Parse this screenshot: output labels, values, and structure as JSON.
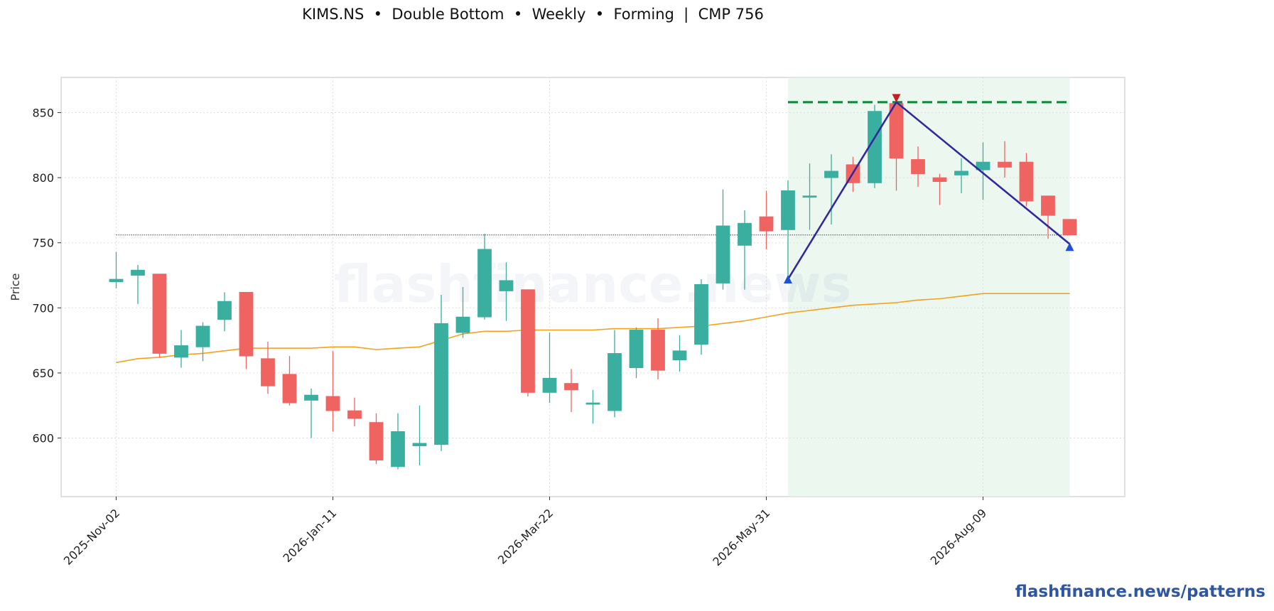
{
  "title": "KIMS.NS  •  Double Bottom  •  Weekly  •  Forming  |  CMP 756",
  "watermark": "flashfinance.news",
  "footer": "flashfinance.news/patterns",
  "colors": {
    "up": "#3aaf9f",
    "down": "#ef6461",
    "ma": "#f5a11c",
    "pattern": "#2e2a9e",
    "resistance": "#12883a",
    "zone": "#e4f3ea",
    "peak_marker": "#c81e1e",
    "bottom_marker": "#2050d8"
  },
  "chart_data": {
    "type": "candlestick",
    "ylabel": "Price",
    "ylim": [
      555,
      877
    ],
    "yticks": [
      600,
      650,
      700,
      750,
      800,
      850
    ],
    "xtick_labels": [
      "2025-Nov-02",
      "2026-Jan-11",
      "2026-Mar-22",
      "2026-May-31",
      "2026-Aug-09"
    ],
    "xtick_index": [
      0,
      10,
      20,
      30,
      40
    ],
    "grid": true,
    "candles": [
      {
        "date": "2025-Nov-02",
        "o": 720,
        "h": 743,
        "l": 715,
        "c": 722
      },
      {
        "date": "2025-Nov-09",
        "o": 725,
        "h": 733,
        "l": 703,
        "c": 729
      },
      {
        "date": "2025-Nov-16",
        "o": 726,
        "h": 726,
        "l": 662,
        "c": 665
      },
      {
        "date": "2025-Nov-23",
        "o": 662,
        "h": 683,
        "l": 654,
        "c": 671
      },
      {
        "date": "2025-Nov-30",
        "o": 670,
        "h": 689,
        "l": 659,
        "c": 686
      },
      {
        "date": "2025-Dec-07",
        "o": 691,
        "h": 712,
        "l": 682,
        "c": 705
      },
      {
        "date": "2025-Dec-14",
        "o": 712,
        "h": 712,
        "l": 653,
        "c": 663
      },
      {
        "date": "2025-Dec-21",
        "o": 661,
        "h": 674,
        "l": 634,
        "c": 640
      },
      {
        "date": "2025-Dec-28",
        "o": 649,
        "h": 663,
        "l": 625,
        "c": 627
      },
      {
        "date": "2026-Jan-04",
        "o": 629,
        "h": 638,
        "l": 600,
        "c": 633
      },
      {
        "date": "2026-Jan-11",
        "o": 632,
        "h": 667,
        "l": 605,
        "c": 621
      },
      {
        "date": "2026-Jan-18",
        "o": 621,
        "h": 631,
        "l": 609,
        "c": 615
      },
      {
        "date": "2026-Jan-25",
        "o": 612,
        "h": 619,
        "l": 580,
        "c": 583
      },
      {
        "date": "2026-Feb-01",
        "o": 578,
        "h": 619,
        "l": 576,
        "c": 605
      },
      {
        "date": "2026-Feb-08",
        "o": 594,
        "h": 625,
        "l": 579,
        "c": 596
      },
      {
        "date": "2026-Feb-15",
        "o": 595,
        "h": 710,
        "l": 590,
        "c": 688
      },
      {
        "date": "2026-Feb-22",
        "o": 681,
        "h": 716,
        "l": 677,
        "c": 693
      },
      {
        "date": "2026-Mar-01",
        "o": 693,
        "h": 757,
        "l": 691,
        "c": 745
      },
      {
        "date": "2026-Mar-08",
        "o": 713,
        "h": 735,
        "l": 690,
        "c": 721
      },
      {
        "date": "2026-Mar-15",
        "o": 714,
        "h": 714,
        "l": 632,
        "c": 635
      },
      {
        "date": "2026-Mar-22",
        "o": 635,
        "h": 681,
        "l": 627,
        "c": 646
      },
      {
        "date": "2026-Mar-29",
        "o": 642,
        "h": 653,
        "l": 620,
        "c": 637
      },
      {
        "date": "2026-Apr-05",
        "o": 626,
        "h": 637,
        "l": 611,
        "c": 627
      },
      {
        "date": "2026-Apr-12",
        "o": 621,
        "h": 683,
        "l": 616,
        "c": 665
      },
      {
        "date": "2026-Apr-19",
        "o": 654,
        "h": 685,
        "l": 646,
        "c": 683
      },
      {
        "date": "2026-Apr-26",
        "o": 683,
        "h": 692,
        "l": 645,
        "c": 652
      },
      {
        "date": "2026-May-03",
        "o": 660,
        "h": 679,
        "l": 651,
        "c": 667
      },
      {
        "date": "2026-May-10",
        "o": 672,
        "h": 722,
        "l": 664,
        "c": 718
      },
      {
        "date": "2026-May-17",
        "o": 719,
        "h": 791,
        "l": 714,
        "c": 763
      },
      {
        "date": "2026-May-24",
        "o": 748,
        "h": 775,
        "l": 714,
        "c": 765
      },
      {
        "date": "2026-May-31",
        "o": 770,
        "h": 790,
        "l": 745,
        "c": 759
      },
      {
        "date": "2026-Jun-07",
        "o": 760,
        "h": 798,
        "l": 722,
        "c": 790
      },
      {
        "date": "2026-Jun-14",
        "o": 785,
        "h": 811,
        "l": 760,
        "c": 786
      },
      {
        "date": "2026-Jun-21",
        "o": 800,
        "h": 818,
        "l": 764,
        "c": 805
      },
      {
        "date": "2026-Jun-28",
        "o": 810,
        "h": 816,
        "l": 789,
        "c": 796
      },
      {
        "date": "2026-Jul-05",
        "o": 796,
        "h": 856,
        "l": 792,
        "c": 851
      },
      {
        "date": "2026-Jul-12",
        "o": 857,
        "h": 862,
        "l": 790,
        "c": 815
      },
      {
        "date": "2026-Jul-19",
        "o": 814,
        "h": 824,
        "l": 793,
        "c": 803
      },
      {
        "date": "2026-Jul-26",
        "o": 800,
        "h": 803,
        "l": 779,
        "c": 797
      },
      {
        "date": "2026-Aug-02",
        "o": 802,
        "h": 815,
        "l": 788,
        "c": 805
      },
      {
        "date": "2026-Aug-09",
        "o": 806,
        "h": 827,
        "l": 783,
        "c": 812
      },
      {
        "date": "2026-Aug-16",
        "o": 812,
        "h": 828,
        "l": 800,
        "c": 808
      },
      {
        "date": "2026-Aug-23",
        "o": 812,
        "h": 819,
        "l": 778,
        "c": 782
      },
      {
        "date": "2026-Aug-30",
        "o": 786,
        "h": 786,
        "l": 753,
        "c": 771
      },
      {
        "date": "2026-Sep-06",
        "o": 768,
        "h": 768,
        "l": 756,
        "c": 756
      }
    ],
    "moving_average": [
      658,
      661,
      662,
      664,
      665,
      667,
      669,
      669,
      669,
      669,
      670,
      670,
      668,
      669,
      670,
      675,
      680,
      682,
      682,
      683,
      683,
      683,
      683,
      684,
      684,
      684,
      685,
      686,
      688,
      690,
      693,
      696,
      698,
      700,
      702,
      703,
      704,
      706,
      707,
      709,
      711,
      711,
      711,
      711,
      711
    ],
    "cmp_line": 756,
    "resistance_level": 858,
    "pattern_zone": {
      "start_index": 31,
      "end_index": 44
    },
    "pattern_line": [
      {
        "index": 31,
        "price": 722
      },
      {
        "index": 36,
        "price": 858
      },
      {
        "index": 44,
        "price": 749
      }
    ],
    "markers": [
      {
        "type": "bottom",
        "index": 31,
        "price": 722
      },
      {
        "type": "peak",
        "index": 36,
        "price": 861
      },
      {
        "type": "bottom",
        "index": 44,
        "price": 747
      }
    ]
  }
}
